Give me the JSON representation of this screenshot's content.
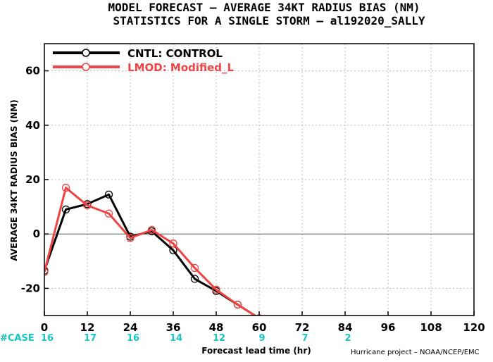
{
  "chart_data": {
    "type": "line",
    "title": "MODEL FORECAST – AVERAGE 34KT RADIUS BIAS (NM)",
    "subtitle": "STATISTICS FOR A SINGLE STORM – al192020_SALLY",
    "xlabel": "Forecast lead time (hr)",
    "ylabel": "AVERAGE 34KT RADIUS BIAS (NM)",
    "xlim": [
      0,
      120
    ],
    "ylim": [
      -30,
      70
    ],
    "x_ticks": [
      0,
      12,
      24,
      36,
      48,
      60,
      72,
      84,
      96,
      108,
      120
    ],
    "y_ticks": [
      -20,
      0,
      20,
      40,
      60
    ],
    "grid": true,
    "legend_position": "top-left",
    "series": [
      {
        "name": "CNTL: CONTROL",
        "color": "#000000",
        "x": [
          0,
          6,
          12,
          18,
          24,
          30,
          36,
          42,
          48,
          54,
          60
        ],
        "y": [
          -13.5,
          9,
          11,
          14.5,
          -1,
          1,
          -6,
          -16.5,
          -21,
          -26,
          -31
        ]
      },
      {
        "name": "LMOD: Modified_L",
        "color": "#ee4444",
        "x": [
          0,
          6,
          12,
          18,
          24,
          30,
          36,
          42,
          48,
          54,
          60
        ],
        "y": [
          -14,
          17,
          10.5,
          7.5,
          -1.5,
          1.5,
          -3.5,
          -12.5,
          -20.5,
          -26,
          -31
        ]
      }
    ],
    "cases": {
      "label": "#CASE",
      "x": [
        0,
        12,
        24,
        36,
        48,
        60,
        72,
        84
      ],
      "values": [
        "16",
        "17",
        "16",
        "14",
        "12",
        "9",
        "7",
        "2"
      ]
    },
    "zero_line": 0,
    "credit": "Hurricane project – NOAA/NCEP/EMC"
  }
}
